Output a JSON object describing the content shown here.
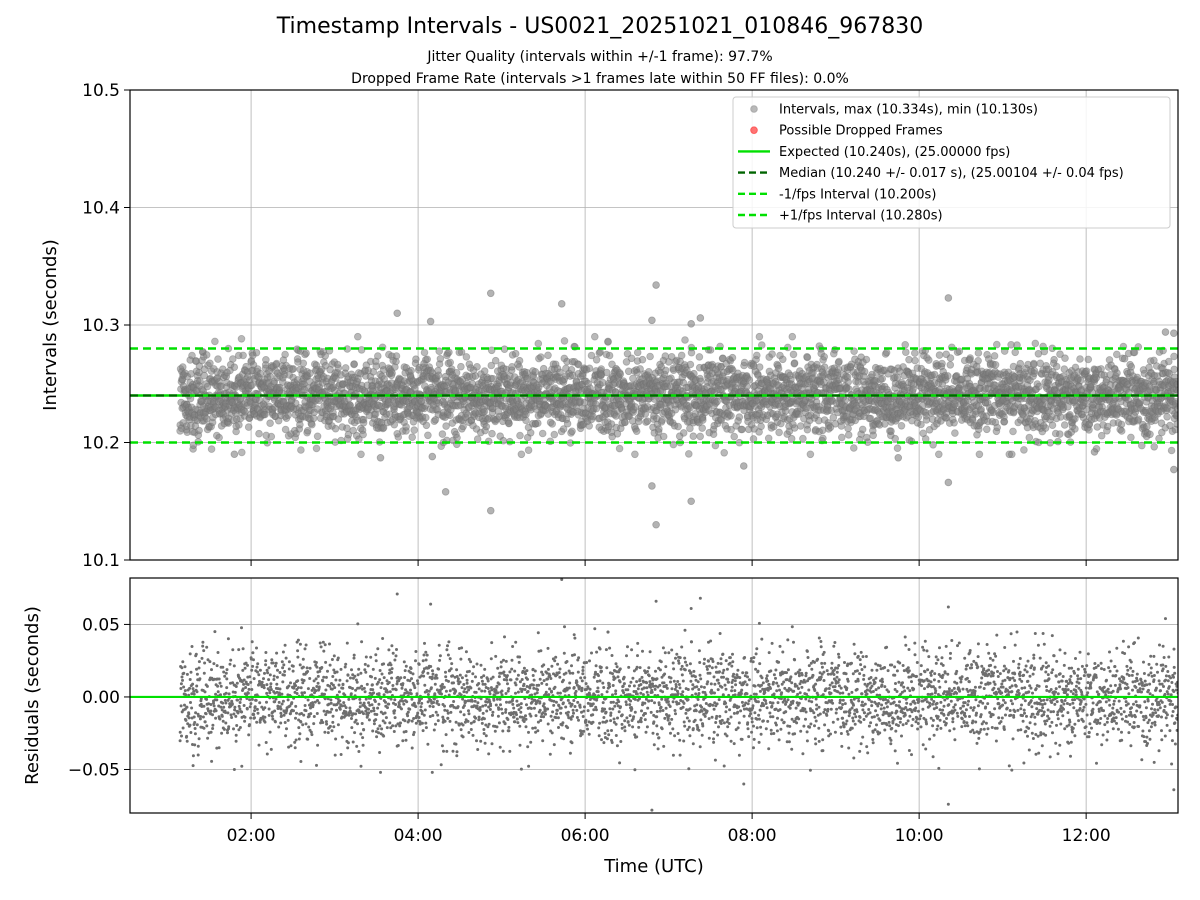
{
  "chart_data": [
    {
      "type": "scatter",
      "title": "Timestamp Intervals - US0021_20251021_010846_967830",
      "subtitle_lines": [
        "Jitter Quality (intervals within +/-1 frame): 97.7%",
        "Dropped Frame Rate (intervals >1 frames late within 50 FF files): 0.0%"
      ],
      "ylabel": "Intervals (seconds)",
      "xlim_hours": [
        0.55,
        13.1
      ],
      "ylim": [
        10.1,
        10.5
      ],
      "yticks": [
        10.1,
        10.2,
        10.3,
        10.4,
        10.5
      ],
      "ytick_labels": [
        "10.1",
        "10.2",
        "10.3",
        "10.4",
        "10.5"
      ],
      "grid": true,
      "legend_position": "top-right",
      "legend": [
        {
          "label": "Intervals, max (10.334s), min (10.130s)",
          "kind": "marker",
          "color": "#808080"
        },
        {
          "label": "Possible Dropped Frames",
          "kind": "marker",
          "color": "#ff0000"
        },
        {
          "label": "Expected (10.240s), (25.00000 fps)",
          "kind": "solid",
          "color": "#00e000"
        },
        {
          "label": "Median (10.240 +/- 0.017 s), (25.00104 +/- 0.04 fps)",
          "kind": "dashed",
          "color": "#006400"
        },
        {
          "label": "-1/fps Interval (10.200s)",
          "kind": "dashed",
          "color": "#00e000"
        },
        {
          "label": "+1/fps Interval (10.280s)",
          "kind": "dashed",
          "color": "#00e000"
        }
      ],
      "reference_lines": [
        {
          "name": "expected",
          "value": 10.24,
          "style": "solid",
          "color": "#00e000"
        },
        {
          "name": "median",
          "value": 10.24,
          "style": "dashed",
          "color": "#006400"
        },
        {
          "name": "minus-one-fps",
          "value": 10.2,
          "style": "dashed",
          "color": "#00e000"
        },
        {
          "name": "plus-one-fps",
          "value": 10.28,
          "style": "dashed",
          "color": "#00e000"
        }
      ],
      "series": [
        {
          "name": "Intervals",
          "color": "#808080",
          "time_range_hours": [
            1.15,
            13.1
          ],
          "count": 4200,
          "median": 10.24,
          "spread": 0.017,
          "max": 10.334,
          "min": 10.13,
          "notable_points": [
            {
              "x": 3.75,
              "y": 10.31
            },
            {
              "x": 4.15,
              "y": 10.303
            },
            {
              "x": 4.87,
              "y": 10.327
            },
            {
              "x": 5.72,
              "y": 10.318
            },
            {
              "x": 6.85,
              "y": 10.334
            },
            {
              "x": 6.8,
              "y": 10.304
            },
            {
              "x": 7.27,
              "y": 10.301
            },
            {
              "x": 7.38,
              "y": 10.306
            },
            {
              "x": 10.35,
              "y": 10.323
            },
            {
              "x": 12.95,
              "y": 10.294
            },
            {
              "x": 13.05,
              "y": 10.293
            },
            {
              "x": 4.33,
              "y": 10.158
            },
            {
              "x": 4.87,
              "y": 10.142
            },
            {
              "x": 6.85,
              "y": 10.13
            },
            {
              "x": 6.8,
              "y": 10.163
            },
            {
              "x": 7.27,
              "y": 10.15
            },
            {
              "x": 10.35,
              "y": 10.166
            },
            {
              "x": 13.05,
              "y": 10.177
            },
            {
              "x": 1.8,
              "y": 10.19
            },
            {
              "x": 3.55,
              "y": 10.187
            },
            {
              "x": 4.17,
              "y": 10.188
            },
            {
              "x": 7.9,
              "y": 10.18
            },
            {
              "x": 9.75,
              "y": 10.187
            },
            {
              "x": 12.1,
              "y": 10.192
            }
          ]
        },
        {
          "name": "Possible Dropped Frames",
          "color": "#ff0000",
          "count": 0,
          "points": []
        }
      ]
    },
    {
      "type": "scatter",
      "xlabel": "Time (UTC)",
      "ylabel": "Residuals (seconds)",
      "xlim_hours": [
        0.55,
        13.1
      ],
      "ylim": [
        -0.08,
        0.082
      ],
      "xticks_hours": [
        2,
        4,
        6,
        8,
        10,
        12
      ],
      "xtick_labels": [
        "02:00",
        "04:00",
        "06:00",
        "08:00",
        "10:00",
        "12:00"
      ],
      "yticks": [
        -0.05,
        0.0,
        0.05
      ],
      "ytick_labels": [
        "−0.05",
        "0.00",
        "0.05"
      ],
      "grid": true,
      "reference_lines": [
        {
          "name": "zero",
          "value": 0.0,
          "style": "solid",
          "color": "#00e000"
        }
      ],
      "series": [
        {
          "name": "Residuals",
          "color": "#6e6e6e",
          "time_range_hours": [
            1.15,
            13.1
          ],
          "count": 4200,
          "mean": 0.0,
          "spread": 0.017,
          "notable_points": [
            {
              "x": 3.75,
              "y": 0.071
            },
            {
              "x": 4.15,
              "y": 0.064
            },
            {
              "x": 5.72,
              "y": 0.081
            },
            {
              "x": 6.85,
              "y": 0.066
            },
            {
              "x": 7.27,
              "y": 0.061
            },
            {
              "x": 7.38,
              "y": 0.068
            },
            {
              "x": 10.35,
              "y": 0.062
            },
            {
              "x": 12.95,
              "y": 0.054
            },
            {
              "x": 6.8,
              "y": -0.078
            },
            {
              "x": 10.35,
              "y": -0.074
            },
            {
              "x": 13.05,
              "y": -0.064
            },
            {
              "x": 7.9,
              "y": -0.06
            },
            {
              "x": 3.55,
              "y": -0.052
            },
            {
              "x": 4.17,
              "y": -0.052
            },
            {
              "x": 1.8,
              "y": -0.05
            }
          ]
        }
      ]
    }
  ]
}
